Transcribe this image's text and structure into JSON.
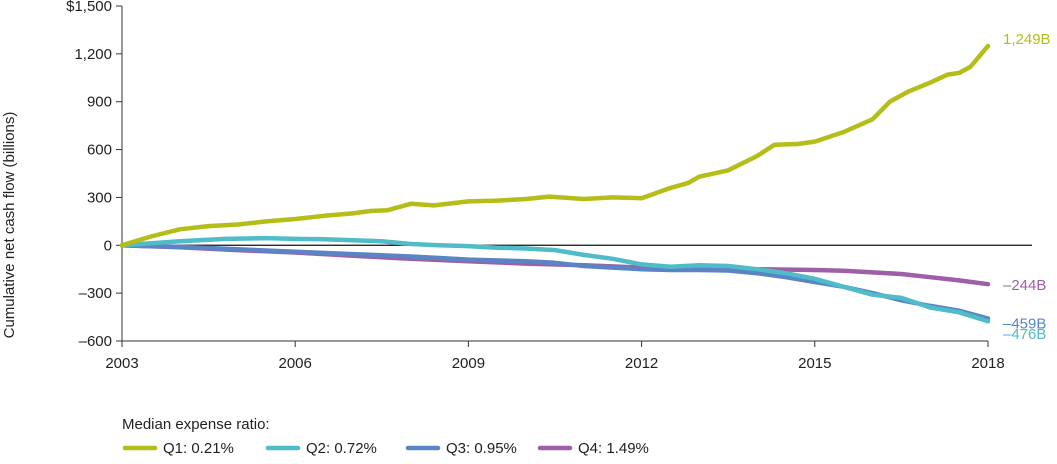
{
  "chart_data": {
    "type": "line",
    "ylabel": "Cumulative net cash flow  (billions)",
    "xlim": [
      2003,
      2018
    ],
    "ylim": [
      -600,
      1500
    ],
    "x_ticks": [
      2003,
      2006,
      2009,
      2012,
      2015,
      2018
    ],
    "x_tick_labels": [
      "2003",
      "2006",
      "2009",
      "2012",
      "2015",
      "2018"
    ],
    "y_ticks": [
      1500,
      1200,
      900,
      600,
      300,
      0,
      -300,
      -600
    ],
    "y_tick_labels": [
      "$1,500",
      "1,200",
      "900",
      "600",
      "300",
      "0",
      "–300",
      "–600"
    ],
    "legend_title": "Median expense ratio:",
    "legend_placement": "bottom-left",
    "series": [
      {
        "name": "Q1: 0.21%",
        "color": "#b5be18",
        "end_label": "1,249B",
        "points": [
          [
            2003,
            0
          ],
          [
            2003.5,
            55
          ],
          [
            2004,
            100
          ],
          [
            2004.5,
            120
          ],
          [
            2005,
            130
          ],
          [
            2005.5,
            150
          ],
          [
            2006,
            165
          ],
          [
            2006.5,
            185
          ],
          [
            2007,
            200
          ],
          [
            2007.3,
            215
          ],
          [
            2007.6,
            220
          ],
          [
            2008,
            260
          ],
          [
            2008.4,
            250
          ],
          [
            2009,
            275
          ],
          [
            2009.5,
            280
          ],
          [
            2010,
            290
          ],
          [
            2010.4,
            305
          ],
          [
            2011,
            290
          ],
          [
            2011.5,
            300
          ],
          [
            2012,
            295
          ],
          [
            2012.5,
            360
          ],
          [
            2012.8,
            390
          ],
          [
            2013,
            430
          ],
          [
            2013.5,
            470
          ],
          [
            2014,
            560
          ],
          [
            2014.3,
            630
          ],
          [
            2014.7,
            635
          ],
          [
            2015,
            650
          ],
          [
            2015.5,
            710
          ],
          [
            2016,
            790
          ],
          [
            2016.3,
            900
          ],
          [
            2016.6,
            960
          ],
          [
            2017,
            1020
          ],
          [
            2017.3,
            1070
          ],
          [
            2017.5,
            1080
          ],
          [
            2017.7,
            1120
          ],
          [
            2018,
            1249
          ]
        ]
      },
      {
        "name": "Q2: 0.72%",
        "color": "#4fbcc8",
        "end_label": "–476B",
        "points": [
          [
            2003,
            0
          ],
          [
            2004,
            25
          ],
          [
            2004.8,
            40
          ],
          [
            2005.5,
            45
          ],
          [
            2006,
            40
          ],
          [
            2006.5,
            38
          ],
          [
            2007,
            32
          ],
          [
            2007.5,
            25
          ],
          [
            2008,
            8
          ],
          [
            2008.5,
            0
          ],
          [
            2009,
            -5
          ],
          [
            2009.5,
            -15
          ],
          [
            2010,
            -20
          ],
          [
            2010.5,
            -30
          ],
          [
            2011,
            -60
          ],
          [
            2011.5,
            -85
          ],
          [
            2012,
            -120
          ],
          [
            2012.5,
            -135
          ],
          [
            2013,
            -125
          ],
          [
            2013.5,
            -130
          ],
          [
            2014,
            -150
          ],
          [
            2014.5,
            -175
          ],
          [
            2015,
            -210
          ],
          [
            2015.5,
            -260
          ],
          [
            2016,
            -310
          ],
          [
            2016.5,
            -330
          ],
          [
            2017,
            -390
          ],
          [
            2017.5,
            -420
          ],
          [
            2018,
            -476
          ]
        ]
      },
      {
        "name": "Q3: 0.95%",
        "color": "#5b84c4",
        "end_label": "–459B",
        "points": [
          [
            2003,
            0
          ],
          [
            2004,
            -10
          ],
          [
            2005,
            -25
          ],
          [
            2006,
            -40
          ],
          [
            2007,
            -55
          ],
          [
            2008,
            -70
          ],
          [
            2008.5,
            -80
          ],
          [
            2009,
            -90
          ],
          [
            2010,
            -100
          ],
          [
            2010.5,
            -110
          ],
          [
            2011,
            -130
          ],
          [
            2011.5,
            -140
          ],
          [
            2012,
            -150
          ],
          [
            2012.5,
            -155
          ],
          [
            2013,
            -155
          ],
          [
            2013.5,
            -158
          ],
          [
            2014,
            -175
          ],
          [
            2014.5,
            -200
          ],
          [
            2015,
            -230
          ],
          [
            2015.5,
            -260
          ],
          [
            2016,
            -300
          ],
          [
            2016.5,
            -345
          ],
          [
            2017,
            -380
          ],
          [
            2017.5,
            -410
          ],
          [
            2018,
            -459
          ]
        ]
      },
      {
        "name": "Q4: 1.49%",
        "color": "#9e5fa8",
        "end_label": "–244B",
        "points": [
          [
            2003,
            0
          ],
          [
            2004,
            -12
          ],
          [
            2005,
            -30
          ],
          [
            2006,
            -45
          ],
          [
            2007,
            -65
          ],
          [
            2008,
            -85
          ],
          [
            2009,
            -100
          ],
          [
            2010,
            -115
          ],
          [
            2011,
            -125
          ],
          [
            2012,
            -140
          ],
          [
            2013,
            -145
          ],
          [
            2014,
            -150
          ],
          [
            2015,
            -155
          ],
          [
            2015.5,
            -160
          ],
          [
            2016,
            -170
          ],
          [
            2016.5,
            -180
          ],
          [
            2017,
            -200
          ],
          [
            2017.5,
            -220
          ],
          [
            2018,
            -244
          ]
        ]
      }
    ]
  }
}
